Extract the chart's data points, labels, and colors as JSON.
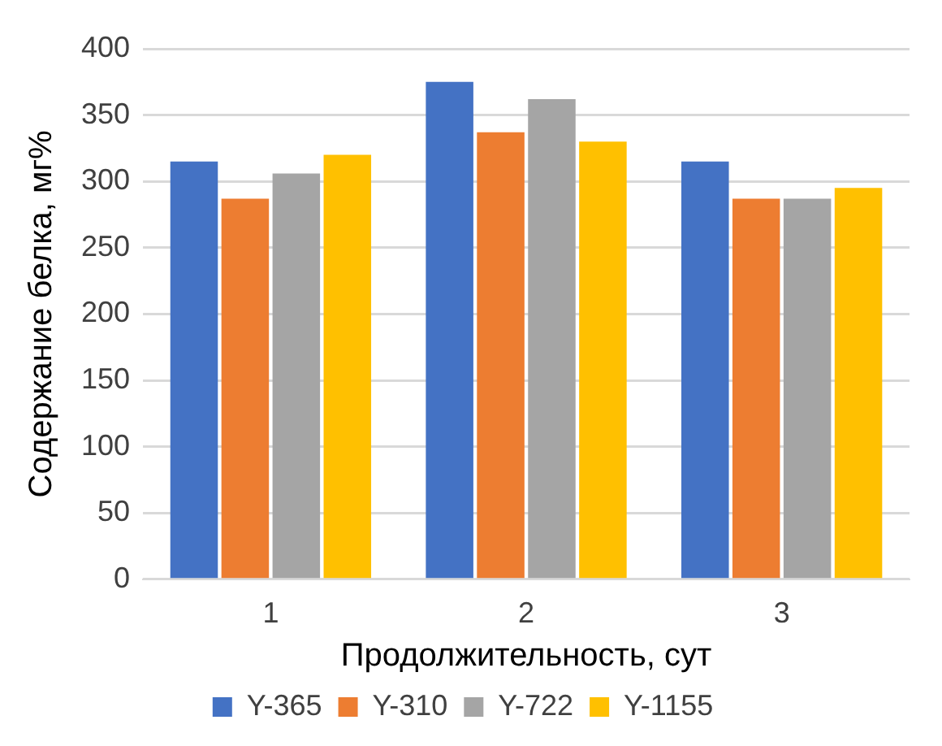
{
  "chart_data": {
    "type": "bar",
    "xlabel": "Продолжительность, сут",
    "ylabel": "Содержание белка, мг%",
    "categories": [
      "1",
      "2",
      "3"
    ],
    "series": [
      {
        "name": "Y-365",
        "color": "#4472c4",
        "values": [
          315,
          375,
          315
        ]
      },
      {
        "name": "Y-310",
        "color": "#ed7d31",
        "values": [
          287,
          337,
          287
        ]
      },
      {
        "name": "Y-722",
        "color": "#a5a5a5",
        "values": [
          306,
          362,
          287
        ]
      },
      {
        "name": "Y-1155",
        "color": "#ffc000",
        "values": [
          320,
          330,
          295
        ]
      }
    ],
    "ylim": [
      0,
      400
    ],
    "yticks": [
      0,
      50,
      100,
      150,
      200,
      250,
      300,
      350,
      400
    ],
    "grid": "y",
    "legend": "bottom"
  }
}
